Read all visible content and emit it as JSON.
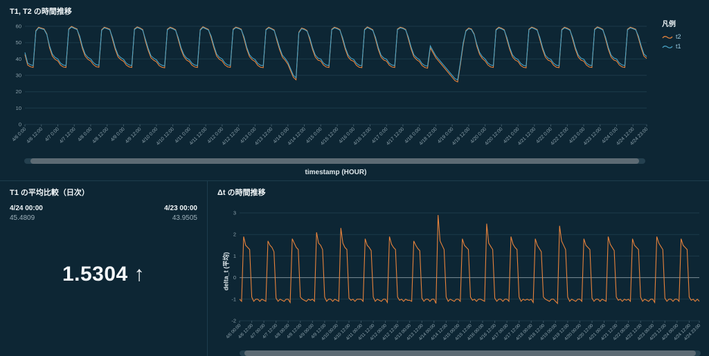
{
  "app": {
    "background": "#0d2634",
    "grid_color": "#1d3b4a",
    "text_muted": "#8ea3ad"
  },
  "chart_data": [
    {
      "type": "line",
      "title": "T1, T2 の時間推移",
      "xlabel": "timestamp (HOUR)",
      "legend_title": "凡例",
      "ylim": [
        0,
        60
      ],
      "ystep": 10,
      "zeroline": false,
      "grid": true,
      "legend_position": "right",
      "tick_every": 6,
      "x_ticks": [
        "4/6 0:00",
        "4/6 12:00",
        "4/7 0:00",
        "4/7 12:00",
        "4/8 0:00",
        "4/8 12:00",
        "4/9 0:00",
        "4/9 12:00",
        "4/10 0:00",
        "4/10 12:00",
        "4/11 0:00",
        "4/11 12:00",
        "4/12 0:00",
        "4/12 12:00",
        "4/13 0:00",
        "4/13 12:00",
        "4/14 0:00",
        "4/14 12:00",
        "4/15 0:00",
        "4/15 12:00",
        "4/16 0:00",
        "4/16 12:00",
        "4/17 0:00",
        "4/17 12:00",
        "4/18 0:00",
        "4/18 12:00",
        "4/19 0:00",
        "4/19 12:00",
        "4/20 0:00",
        "4/20 12:00",
        "4/21 0:00",
        "4/21 12:00",
        "4/22 0:00",
        "4/22 12:00",
        "4/23 0:00",
        "4/23 12:00",
        "4/24 0:00",
        "4/24 12:00",
        "4/24 23:00"
      ],
      "series": [
        {
          "name": "t2",
          "color": "#e8833c",
          "values": [
            42.8,
            36.3,
            35.3,
            34.8,
            57.4,
            59.4,
            58.9,
            58.4,
            55.4,
            46.8,
            41.8,
            39.8,
            38.8,
            36.3,
            35.1,
            34.8,
            58.4,
            59.9,
            59.1,
            58.4,
            52.8,
            46.3,
            41.8,
            39.8,
            38.8,
            36.6,
            35.3,
            35,
            57.9,
            59.4,
            58.9,
            58.2,
            51.8,
            45.8,
            41.3,
            39.6,
            38.6,
            36.3,
            35.2,
            34.8,
            58.4,
            59.6,
            59,
            58,
            50.8,
            45.3,
            40.8,
            39.3,
            38.3,
            36,
            35,
            34.6,
            58.2,
            59.4,
            58.8,
            57.9,
            51.8,
            45.8,
            41.6,
            39.4,
            38.4,
            36.2,
            35.1,
            34.8,
            58,
            59.7,
            58.9,
            58.1,
            52.8,
            46.8,
            41.8,
            39.8,
            38.8,
            36.4,
            35.2,
            34.9,
            58.3,
            59.5,
            59,
            58.2,
            52.3,
            46,
            41.4,
            39.5,
            38.5,
            36.1,
            35,
            34.7,
            58.1,
            59.4,
            58.7,
            57.8,
            51.3,
            45.6,
            41.1,
            39.2,
            36.8,
            32.8,
            28.8,
            27.3,
            56.4,
            58.9,
            58.4,
            57.4,
            51.8,
            45.8,
            41.3,
            39.3,
            38.8,
            36.3,
            35.1,
            34.8,
            58.2,
            59.4,
            58.9,
            58,
            51.8,
            45.8,
            41.3,
            39.3,
            38.6,
            36.2,
            35,
            34.7,
            58.1,
            59.6,
            58.8,
            57.9,
            52,
            45.9,
            41.2,
            39.4,
            38.7,
            36.3,
            35.1,
            34.8,
            58.3,
            59.4,
            59,
            58.1,
            52.2,
            46.1,
            41.4,
            39.6,
            38.4,
            36,
            34.8,
            34.4,
            46.8,
            43.8,
            40.8,
            38.8,
            36.8,
            34.8,
            32.8,
            30.8,
            28.8,
            26.8,
            26,
            36.8,
            48.8,
            57.4,
            58.9,
            58.4,
            55.4,
            47.8,
            42.8,
            40.3,
            38.8,
            36.4,
            35.2,
            34.8,
            58,
            59.4,
            58.8,
            57.9,
            51.8,
            45.8,
            41.3,
            39.4,
            38.5,
            36.1,
            34.9,
            34.6,
            58.2,
            59.5,
            58.9,
            58,
            51.9,
            45.8,
            41.2,
            39.3,
            38.6,
            36.2,
            35,
            34.7,
            58.1,
            59.4,
            58.8,
            57.9,
            51.8,
            45.8,
            41.3,
            39.3,
            38.7,
            36.3,
            35.1,
            34.8,
            58.3,
            59.6,
            59,
            58.1,
            52,
            45.9,
            41.2,
            39.4,
            38.8,
            36.4,
            35.2,
            34.8,
            58.2,
            59.4,
            58.9,
            58.2,
            52.8,
            46.8,
            41.8,
            40.3
          ]
        },
        {
          "name": "t1",
          "color": "#48a2c5",
          "values": [
            44,
            37.5,
            36.5,
            36,
            57,
            59,
            58.5,
            58,
            55,
            48,
            43,
            41,
            40,
            37.5,
            36.3,
            36,
            58,
            59.5,
            58.7,
            58,
            54,
            47.5,
            43,
            41,
            40,
            37.8,
            36.5,
            36.2,
            57.5,
            59,
            58.5,
            57.8,
            53,
            47,
            42.5,
            40.8,
            39.8,
            37.5,
            36.4,
            36,
            58,
            59.2,
            58.6,
            57.6,
            52,
            46.5,
            42,
            40.5,
            39.5,
            37.2,
            36.2,
            35.8,
            57.8,
            59,
            58.4,
            57.5,
            53,
            47,
            42.8,
            40.6,
            39.6,
            37.4,
            36.3,
            36,
            57.6,
            59.3,
            58.5,
            57.7,
            54,
            48,
            43,
            41,
            40,
            37.6,
            36.4,
            36.1,
            57.9,
            59.1,
            58.6,
            57.8,
            53.5,
            47.2,
            42.6,
            40.7,
            39.7,
            37.3,
            36.2,
            35.9,
            57.7,
            59,
            58.3,
            57.4,
            52.5,
            46.8,
            42.3,
            40.4,
            38,
            34,
            30,
            28.5,
            56,
            58.5,
            58,
            57,
            53,
            47,
            42.5,
            40.5,
            40,
            37.5,
            36.3,
            36,
            57.8,
            59,
            58.5,
            57.6,
            53,
            47,
            42.5,
            40.5,
            39.8,
            37.4,
            36.2,
            35.9,
            57.7,
            59.2,
            58.4,
            57.5,
            53.2,
            47.1,
            42.4,
            40.6,
            39.9,
            37.5,
            36.3,
            36,
            57.9,
            59,
            58.6,
            57.7,
            53.4,
            47.3,
            42.6,
            40.8,
            39.6,
            37.2,
            36,
            35.6,
            48,
            45,
            42,
            40,
            38,
            36,
            34,
            32,
            30,
            28,
            27.2,
            38,
            50,
            57,
            58.5,
            58,
            55,
            49,
            44,
            41.5,
            40,
            37.6,
            36.4,
            36,
            57.6,
            59,
            58.4,
            57.5,
            53,
            47,
            42.5,
            40.6,
            39.7,
            37.3,
            36.1,
            35.8,
            57.8,
            59.1,
            58.5,
            57.6,
            53.1,
            47,
            42.4,
            40.5,
            39.8,
            37.4,
            36.2,
            35.9,
            57.7,
            59,
            58.4,
            57.5,
            53,
            47,
            42.5,
            40.5,
            39.9,
            37.5,
            36.3,
            36,
            57.9,
            59.2,
            58.6,
            57.7,
            53.2,
            47.1,
            42.4,
            40.6,
            40,
            37.6,
            36.4,
            36,
            57.8,
            59,
            58.5,
            57.8,
            54,
            48,
            43,
            41.5
          ]
        }
      ]
    },
    {
      "type": "kpi",
      "title": "T1 の平均比較（日次）",
      "periods": [
        {
          "label": "4/24 00:00",
          "value": "45.4809"
        },
        {
          "label": "4/23 00:00",
          "value": "43.9505"
        }
      ],
      "diff": "1.5304 ↑"
    },
    {
      "type": "line",
      "title": "Δt の時間推移",
      "ylabel": "delta_t (平均)",
      "ylim": [
        -2,
        3
      ],
      "ystep": 1,
      "zeroline": true,
      "grid": true,
      "tick_every": 6,
      "x_ticks": [
        "4/6 00:00",
        "4/6 12:00",
        "4/7 00:00",
        "4/7 12:00",
        "4/8 00:00",
        "4/8 12:00",
        "4/9 00:00",
        "4/9 12:00",
        "4/10 00:00",
        "4/10 12:00",
        "4/11 00:00",
        "4/11 12:00",
        "4/12 00:00",
        "4/12 12:00",
        "4/13 00:00",
        "4/13 12:00",
        "4/14 00:00",
        "4/14 12:00",
        "4/15 00:00",
        "4/15 12:00",
        "4/16 00:00",
        "4/16 12:00",
        "4/17 00:00",
        "4/17 12:00",
        "4/18 00:00",
        "4/18 12:00",
        "4/19 00:00",
        "4/19 12:00",
        "4/20 00:00",
        "4/20 12:00",
        "4/21 00:00",
        "4/21 12:00",
        "4/22 00:00",
        "4/22 12:00",
        "4/23 00:00",
        "4/23 12:00",
        "4/24 00:00",
        "4/24 12:00",
        "4/24 23:00"
      ],
      "series": [
        {
          "name": "delta_t",
          "color": "#e8833c",
          "values": [
            -1,
            -1.1,
            1.9,
            1.5,
            1.4,
            1.3,
            -0.9,
            -1.1,
            -1,
            -1,
            -1.1,
            -1,
            -1.05,
            -1.1,
            1.7,
            1.5,
            1.4,
            1.2,
            -0.95,
            -1.1,
            -1,
            -1.05,
            -1.1,
            -1,
            -1,
            -1.15,
            1.8,
            1.6,
            1.4,
            1.3,
            -0.9,
            -1,
            -1.05,
            -1.1,
            -1,
            -1.05,
            -1,
            -1.1,
            2.1,
            1.6,
            1.5,
            1.3,
            -0.9,
            -1.1,
            -1,
            -1,
            -1.1,
            -1,
            -1.05,
            -1.1,
            2.3,
            1.6,
            1.4,
            1.3,
            -0.95,
            -1.05,
            -1,
            -1.1,
            -1,
            -1,
            -1,
            -1.1,
            1.8,
            1.5,
            1.4,
            1.25,
            -0.9,
            -1.1,
            -1,
            -1.05,
            -1.1,
            -1,
            -1,
            -1.15,
            1.9,
            1.55,
            1.4,
            1.3,
            -0.9,
            -1.05,
            -1,
            -1.1,
            -1,
            -1.05,
            -1.05,
            -1.1,
            1.7,
            1.5,
            1.35,
            1.25,
            -0.95,
            -1.1,
            -1,
            -1,
            -1.1,
            -1,
            -1,
            -1.2,
            2.9,
            1.7,
            1.5,
            1.3,
            -0.9,
            -1.1,
            -1,
            -1.05,
            -1.1,
            -1,
            -1,
            -1.1,
            1.8,
            1.5,
            1.4,
            1.3,
            -0.9,
            -1.05,
            -1,
            -1.1,
            -1,
            -1,
            -1.05,
            -1.1,
            2.5,
            1.6,
            1.45,
            1.3,
            -0.95,
            -1.1,
            -1,
            -1,
            -1.1,
            -1,
            -1,
            -1.1,
            1.9,
            1.55,
            1.4,
            1.3,
            -0.9,
            -1.1,
            -1,
            -1.05,
            -1,
            -1.05,
            -1,
            -1.15,
            1.8,
            1.5,
            1.35,
            1.2,
            -0.9,
            -1,
            -1.05,
            -1.1,
            -1,
            -1,
            -1.1,
            -1.2,
            2.4,
            1.7,
            1.5,
            1.3,
            -0.9,
            -1.1,
            -1,
            -1.05,
            -1.1,
            -1,
            -1,
            -1.1,
            1.8,
            1.5,
            1.4,
            1.3,
            -0.95,
            -1.1,
            -1,
            -1,
            -1.1,
            -1,
            -1.05,
            -1.1,
            1.9,
            1.55,
            1.4,
            1.25,
            -0.9,
            -1.05,
            -1,
            -1.1,
            -1,
            -1.05,
            -1,
            -1.1,
            1.8,
            1.5,
            1.4,
            1.3,
            -0.9,
            -1.1,
            -1,
            -1.05,
            -1.1,
            -1,
            -1,
            -1.15,
            1.9,
            1.6,
            1.45,
            1.3,
            -0.95,
            -1.1,
            -1,
            -1,
            -1.1,
            -1,
            -1,
            -1.1,
            1.8,
            1.5,
            1.4,
            1.3,
            -0.9,
            -1.05,
            -1,
            -1.1,
            -1,
            -1.1
          ]
        }
      ]
    }
  ]
}
